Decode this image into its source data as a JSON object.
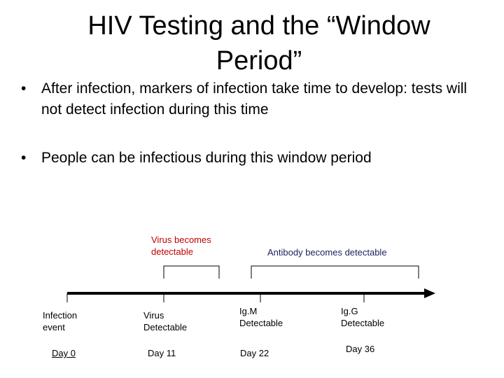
{
  "slide": {
    "title": "HIV Testing and the “Window Period”",
    "bullets": [
      "After infection, markers of infection take time to develop: tests will not detect infection during this time",
      "People can be infectious during this window period"
    ],
    "bullet_glyph": "•"
  },
  "timeline": {
    "virus_bracket_label": "Virus becomes detectable",
    "antibody_bracket_label": "Antibody becomes detectable",
    "events": [
      {
        "label": "Infection event",
        "day": "Day 0"
      },
      {
        "label": "Virus Detectable",
        "day": "Day 11"
      },
      {
        "label": "Ig.M Detectable",
        "day": "Day 22"
      },
      {
        "label": "Ig.G Detectable",
        "day": "Day 36"
      }
    ],
    "colors": {
      "virus_label": "#c00000",
      "antibody_label": "#1f1f5f",
      "line": "#000000"
    }
  }
}
